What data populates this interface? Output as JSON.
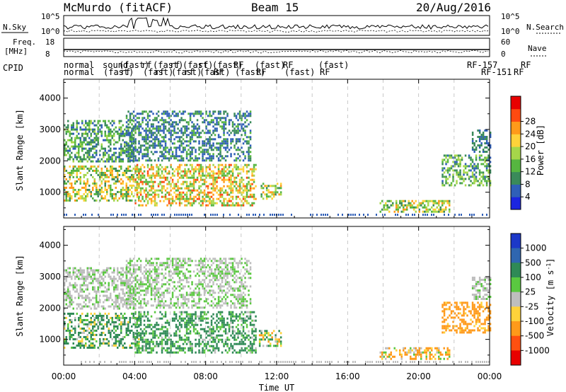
{
  "header": {
    "station": "McMurdo (fitACF)",
    "beam": "Beam 15",
    "date": "20/Aug/2016"
  },
  "strip_labels": {
    "nsky": "N.Sky",
    "nsearch": "N.Search",
    "freq": "Freq.",
    "freq_unit": "[MHz]",
    "nave": "Nave",
    "cpid": "CPID",
    "nsky_ticks": [
      "10^5",
      "10^0"
    ],
    "nsearch_ticks": [
      "10^5",
      "10^0"
    ],
    "freq_ticks": [
      "18",
      "8"
    ],
    "nave_ticks": [
      "60",
      "0"
    ]
  },
  "cpid_rows": {
    "row1": [
      "normal",
      "sound",
      "(fast)",
      "rf",
      "(fast)",
      "rf",
      "(fast)",
      "rf",
      "(fast)",
      "RF",
      "(fast)",
      "RF",
      "(fast)",
      "RF-157",
      "RF"
    ],
    "row2": [
      "normal",
      "(fast)",
      "rf",
      "(fast)",
      "rf",
      "(fast)",
      "rf",
      "(fast)",
      "RF",
      "(fast)",
      "RF",
      "(fast)",
      "RF",
      "RF-151",
      "RF"
    ]
  },
  "chart_data": {
    "type": "heatmap",
    "time_axis": {
      "label": "Time UT",
      "ticks": [
        "00:00",
        "04:00",
        "08:00",
        "12:00",
        "16:00",
        "20:00",
        "00:00"
      ],
      "range_hours": [
        0,
        24
      ]
    },
    "range_axis": {
      "label": "Slant Range [km]",
      "ticks": [
        1000,
        2000,
        3000,
        4000
      ],
      "range_km": [
        180,
        4600
      ]
    },
    "power_panel": {
      "colorbar_label": "Power [dB]",
      "colorbar_ticks": [
        4,
        8,
        12,
        16,
        20,
        24,
        28
      ],
      "colors": [
        "#1b25e0",
        "#2f5fb8",
        "#3a8a5a",
        "#56b640",
        "#a6d64a",
        "#ffd23a",
        "#ff9a1a",
        "#ff4a10",
        "#e80000"
      ],
      "echo_regions": [
        {
          "t": [
            0.0,
            4.2
          ],
          "r": [
            700,
            1850
          ],
          "v": [
            8,
            28
          ]
        },
        {
          "t": [
            4.0,
            10.8
          ],
          "r": [
            600,
            1900
          ],
          "v": [
            12,
            30
          ]
        },
        {
          "t": [
            0.0,
            4.0
          ],
          "r": [
            2000,
            3300
          ],
          "v": [
            6,
            18
          ]
        },
        {
          "t": [
            3.5,
            10.5
          ],
          "r": [
            2000,
            3600
          ],
          "v": [
            4,
            14
          ]
        },
        {
          "t": [
            11.0,
            12.2
          ],
          "r": [
            800,
            1300
          ],
          "v": [
            10,
            26
          ]
        },
        {
          "t": [
            17.8,
            21.7
          ],
          "r": [
            350,
            750
          ],
          "v": [
            8,
            28
          ]
        },
        {
          "t": [
            21.3,
            24.0
          ],
          "r": [
            1200,
            2200
          ],
          "v": [
            6,
            20
          ]
        },
        {
          "t": [
            23.0,
            24.0
          ],
          "r": [
            2300,
            3000
          ],
          "v": [
            4,
            12
          ]
        }
      ]
    },
    "velocity_panel": {
      "colorbar_label": "Velocity [m s^-1]",
      "colorbar_ticks": [
        "1000",
        "500",
        "100",
        "25",
        "-25",
        "-100",
        "-500",
        "-1000"
      ],
      "colors": [
        "#1c38c8",
        "#2f66b0",
        "#2f8a56",
        "#5ac840",
        "#bebebe",
        "#ffd23a",
        "#ff9a1a",
        "#ff5010",
        "#e80000"
      ],
      "echo_regions": [
        {
          "t": [
            0.0,
            4.2
          ],
          "r": [
            700,
            1850
          ],
          "v": [
            -100,
            400
          ]
        },
        {
          "t": [
            4.0,
            10.8
          ],
          "r": [
            600,
            1900
          ],
          "v": [
            0,
            300
          ]
        },
        {
          "t": [
            0.0,
            4.0
          ],
          "r": [
            2000,
            3300
          ],
          "v": [
            -20,
            40
          ]
        },
        {
          "t": [
            3.5,
            10.5
          ],
          "r": [
            2000,
            3600
          ],
          "v": [
            -20,
            60
          ]
        },
        {
          "t": [
            11.0,
            12.2
          ],
          "r": [
            800,
            1300
          ],
          "v": [
            -200,
            200
          ]
        },
        {
          "t": [
            17.8,
            21.7
          ],
          "r": [
            350,
            750
          ],
          "v": [
            -300,
            100
          ]
        },
        {
          "t": [
            21.3,
            24.0
          ],
          "r": [
            1200,
            2200
          ],
          "v": [
            -500,
            -50
          ]
        },
        {
          "t": [
            23.0,
            24.0
          ],
          "r": [
            2300,
            3000
          ],
          "v": [
            -20,
            40
          ]
        }
      ]
    }
  }
}
